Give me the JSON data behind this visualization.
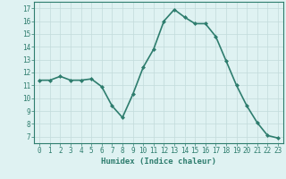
{
  "x": [
    0,
    1,
    2,
    3,
    4,
    5,
    6,
    7,
    8,
    9,
    10,
    11,
    12,
    13,
    14,
    15,
    16,
    17,
    18,
    19,
    20,
    21,
    22,
    23
  ],
  "y": [
    11.4,
    11.4,
    11.7,
    11.4,
    11.4,
    11.5,
    10.9,
    9.4,
    8.5,
    10.3,
    12.4,
    13.8,
    16.0,
    16.9,
    16.3,
    15.8,
    15.8,
    14.8,
    12.9,
    11.0,
    9.4,
    8.1,
    7.1,
    6.9
  ],
  "line_color": "#2e7d6e",
  "marker": "D",
  "markersize": 2.0,
  "linewidth": 1.2,
  "xlabel": "Humidex (Indice chaleur)",
  "xlabel_fontsize": 6.5,
  "tick_fontsize": 5.5,
  "ylim": [
    6.5,
    17.5
  ],
  "yticks": [
    7,
    8,
    9,
    10,
    11,
    12,
    13,
    14,
    15,
    16,
    17
  ],
  "xlim": [
    -0.5,
    23.5
  ],
  "xticks": [
    0,
    1,
    2,
    3,
    4,
    5,
    6,
    7,
    8,
    9,
    10,
    11,
    12,
    13,
    14,
    15,
    16,
    17,
    18,
    19,
    20,
    21,
    22,
    23
  ],
  "bg_color": "#dff2f2",
  "grid_color": "#c2dada",
  "axis_color": "#2e7d6e",
  "spine_color": "#2e7d6e"
}
